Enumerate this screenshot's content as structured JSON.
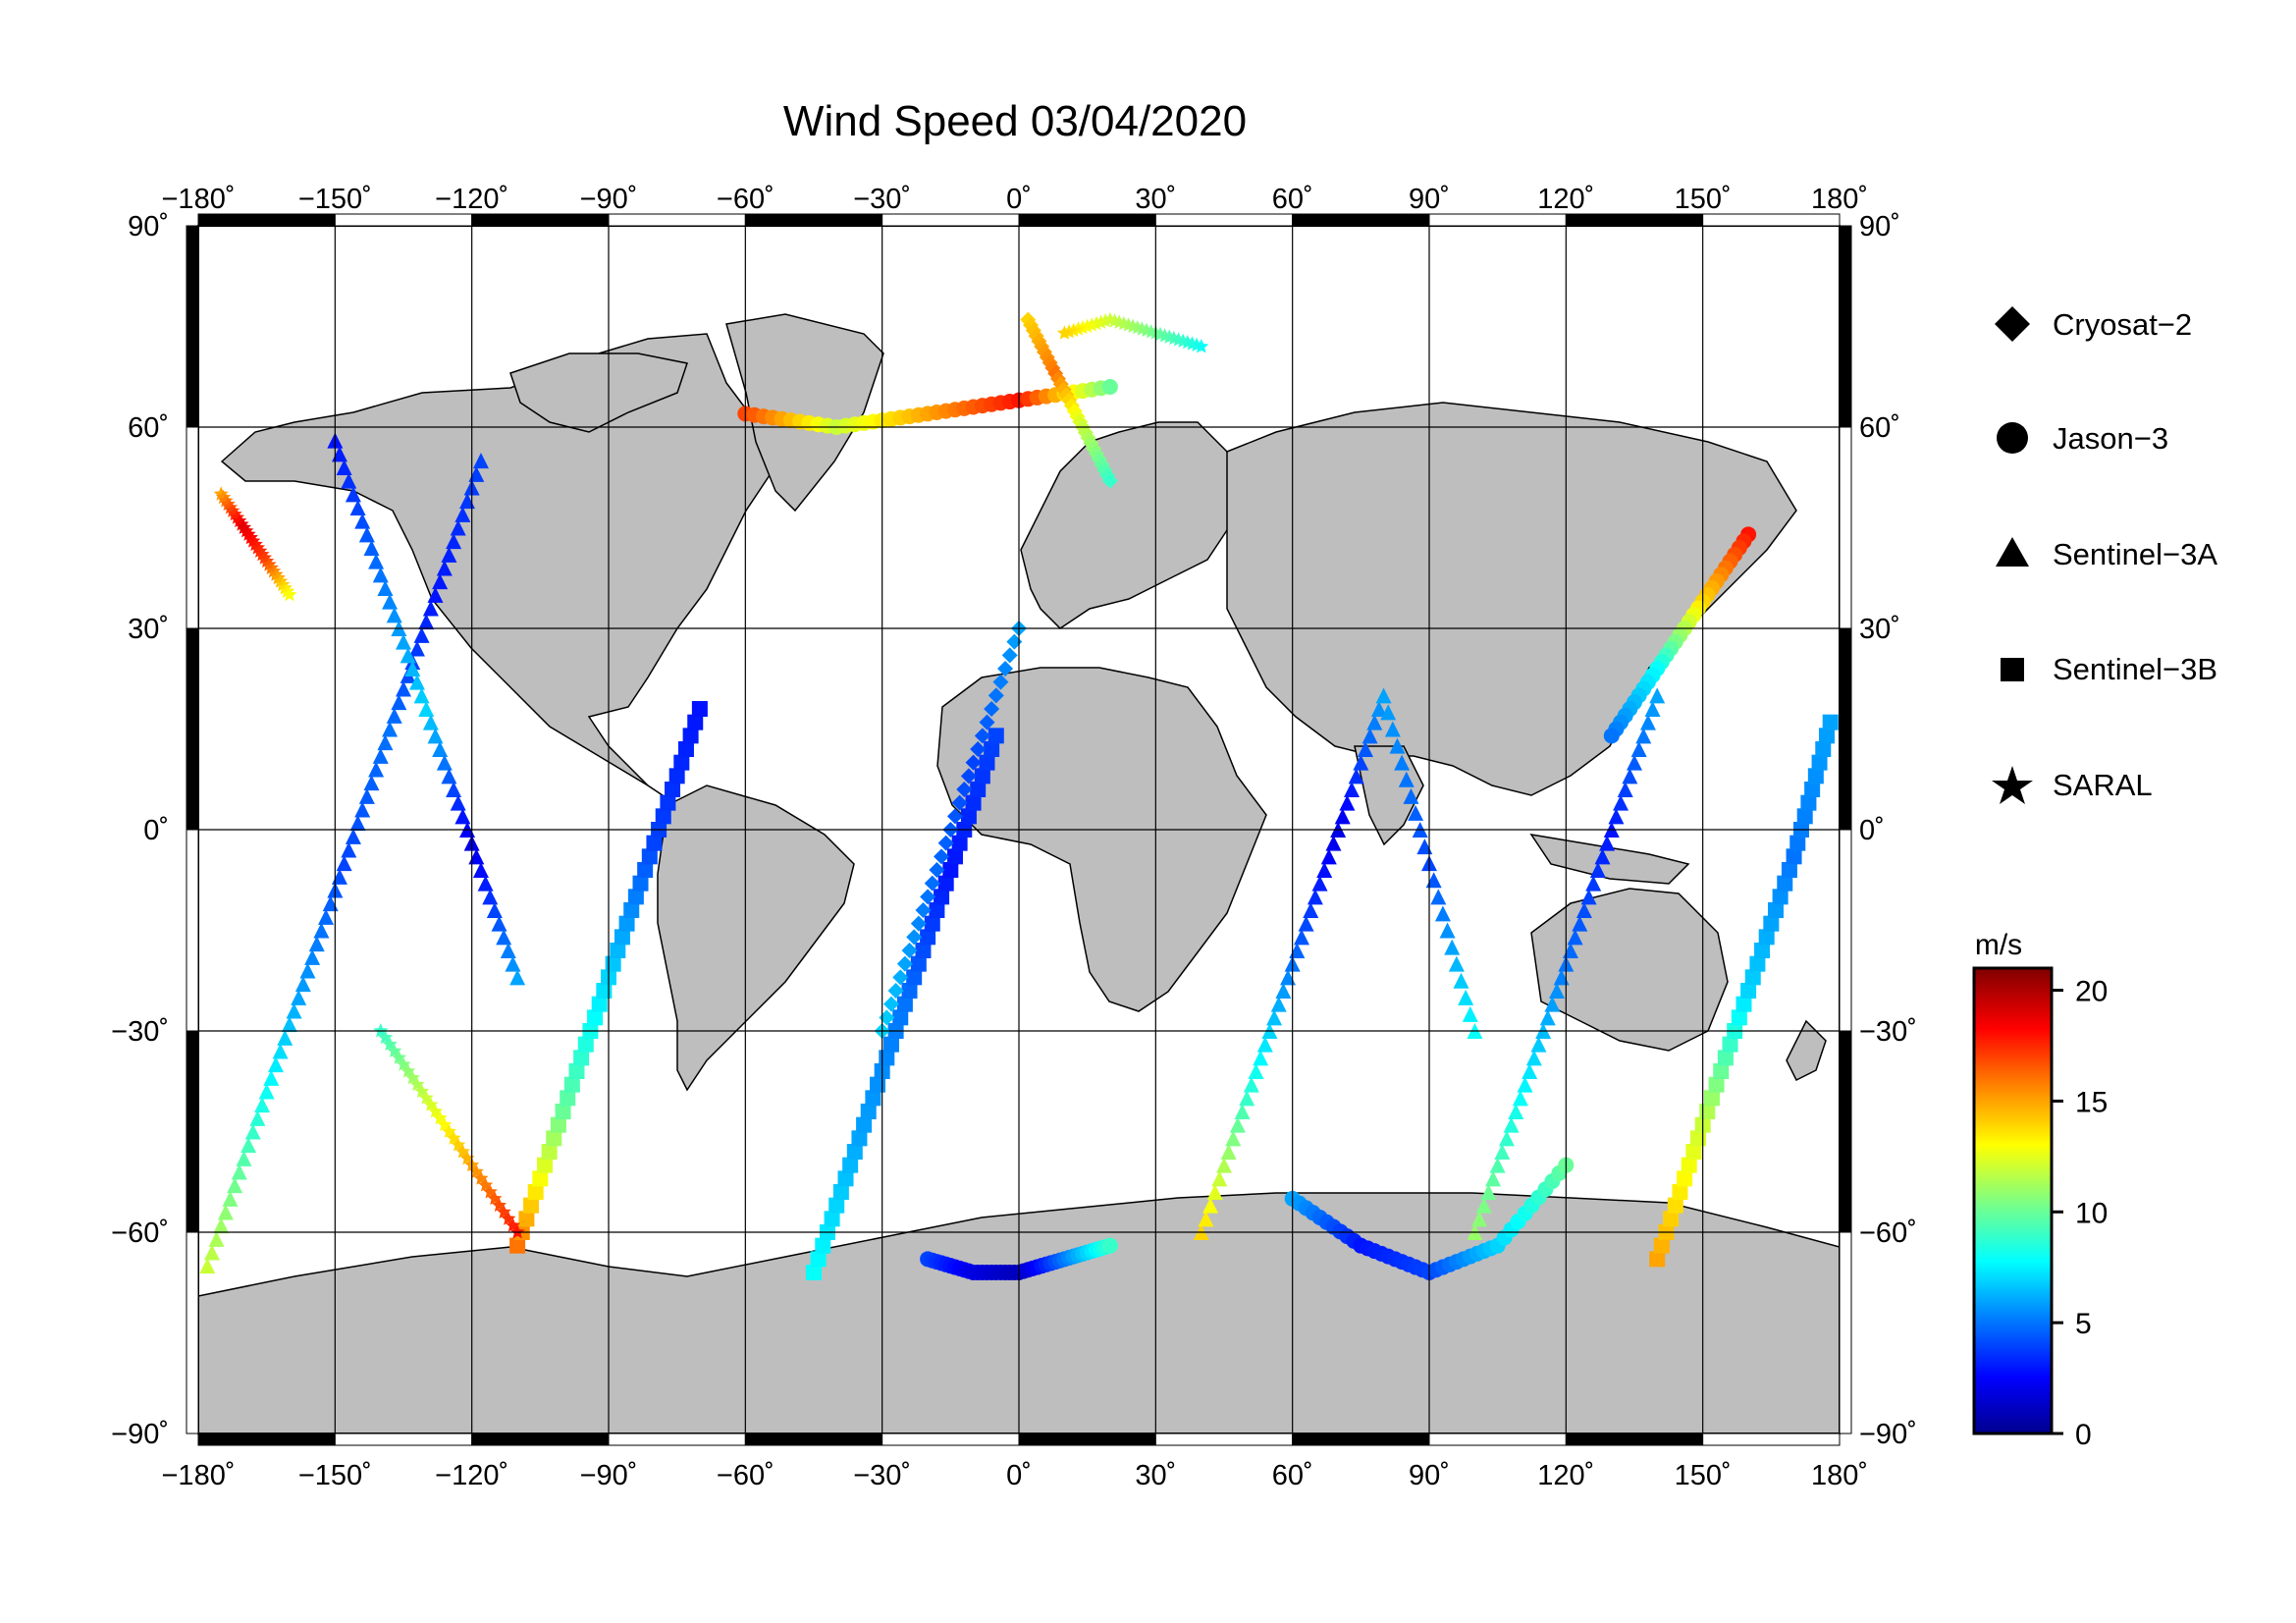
{
  "title": "Wind Speed 03/04/2020",
  "map": {
    "lon_ticks": [
      "−180˚",
      "−150˚",
      "−120˚",
      "−90˚",
      "−60˚",
      "−30˚",
      "0˚",
      "30˚",
      "60˚",
      "90˚",
      "120˚",
      "150˚",
      "180˚"
    ],
    "lon_values": [
      -180,
      -150,
      -120,
      -90,
      -60,
      -30,
      0,
      30,
      60,
      90,
      120,
      150,
      180
    ],
    "lat_ticks": [
      "90˚",
      "60˚",
      "30˚",
      "0˚",
      "−30˚",
      "−60˚",
      "−90˚"
    ],
    "lat_values": [
      90,
      60,
      30,
      0,
      -30,
      -60,
      -90
    ],
    "land_color": "#bebebe",
    "ocean_color": "#ffffff",
    "grid": true
  },
  "legend": {
    "items": [
      {
        "label": "Cryosat−2",
        "marker": "diamond"
      },
      {
        "label": "Jason−3",
        "marker": "circle"
      },
      {
        "label": "Sentinel−3A",
        "marker": "triangle"
      },
      {
        "label": "Sentinel−3B",
        "marker": "square"
      },
      {
        "label": "SARAL",
        "marker": "star"
      }
    ]
  },
  "colorbar": {
    "unit": "m/s",
    "min": 0,
    "max": 21,
    "tick_labels": [
      "20",
      "15",
      "10",
      "5",
      "0"
    ],
    "tick_values": [
      20,
      15,
      10,
      5,
      0
    ],
    "colors": [
      "#00008f",
      "#0000ff",
      "#0080ff",
      "#00ffff",
      "#80ff80",
      "#ffff00",
      "#ff8000",
      "#ff0000",
      "#800000"
    ]
  },
  "chart_data": {
    "type": "scatter",
    "title": "Wind Speed 03/04/2020",
    "xlim": [
      -180,
      180
    ],
    "ylim": [
      -90,
      90
    ],
    "value_unit": "m/s",
    "value_range": [
      0,
      21
    ],
    "series": [
      {
        "name": "Sentinel−3A",
        "marker": "triangle",
        "tracks": [
          {
            "lon": [
              -178,
              -168,
              -158,
              -148,
              -138,
              -128,
              -118
            ],
            "lat": [
              -65,
              -45,
              -25,
              -5,
              15,
              35,
              55
            ],
            "ws": [
              12,
              9,
              6,
              4,
              5,
              3,
              4
            ]
          },
          {
            "lon": [
              -150,
              -140,
              -130,
              -120,
              -110
            ],
            "lat": [
              58,
              38,
              18,
              -2,
              -22
            ],
            "ws": [
              3,
              5,
              7,
              2,
              6
            ]
          },
          {
            "lon": [
              40,
              50,
              60,
              70,
              80,
              90,
              100
            ],
            "lat": [
              -60,
              -40,
              -20,
              0,
              20,
              -5,
              -30
            ],
            "ws": [
              14,
              9,
              5,
              2,
              6,
              4,
              8
            ]
          },
          {
            "lon": [
              100,
              110,
              120,
              130,
              140
            ],
            "lat": [
              -60,
              -40,
              -20,
              0,
              20
            ],
            "ws": [
              11,
              8,
              5,
              3,
              6
            ]
          }
        ]
      },
      {
        "name": "Sentinel−3B",
        "marker": "square",
        "tracks": [
          {
            "lon": [
              -110,
              -100,
              -90,
              -80,
              -70
            ],
            "lat": [
              -62,
              -42,
              -22,
              -2,
              18
            ],
            "ws": [
              16,
              10,
              7,
              4,
              3
            ]
          },
          {
            "lon": [
              -45,
              -35,
              -25,
              -15,
              -5
            ],
            "lat": [
              -66,
              -46,
              -26,
              -6,
              14
            ],
            "ws": [
              8,
              6,
              5,
              3,
              4
            ]
          },
          {
            "lon": [
              140,
              150,
              160,
              170,
              178
            ],
            "lat": [
              -64,
              -44,
              -24,
              -4,
              16
            ],
            "ws": [
              15,
              12,
              7,
              5,
              6
            ]
          }
        ]
      },
      {
        "name": "Jason−3",
        "marker": "circle",
        "tracks": [
          {
            "lon": [
              -60,
              -40,
              -20,
              0,
              20
            ],
            "lat": [
              62,
              60,
              62,
              64,
              66
            ],
            "ws": [
              17,
              12,
              15,
              18,
              10
            ]
          },
          {
            "lon": [
              -20,
              -10,
              0,
              10,
              20
            ],
            "lat": [
              -64,
              -66,
              -66,
              -64,
              -62
            ],
            "ws": [
              4,
              2,
              1,
              5,
              9
            ]
          },
          {
            "lon": [
              160,
              150,
              140,
              130
            ],
            "lat": [
              44,
              34,
              24,
              14
            ],
            "ws": [
              18,
              14,
              8,
              5
            ]
          },
          {
            "lon": [
              60,
              75,
              90,
              105,
              120
            ],
            "lat": [
              -55,
              -62,
              -66,
              -62,
              -50
            ],
            "ws": [
              6,
              3,
              4,
              7,
              10
            ]
          }
        ]
      },
      {
        "name": "Cryosat−2",
        "marker": "diamond",
        "tracks": [
          {
            "lon": [
              2,
              8,
              14,
              20
            ],
            "lat": [
              76,
              68,
              60,
              52
            ],
            "ws": [
              14,
              16,
              12,
              9
            ]
          },
          {
            "lon": [
              -30,
              -20,
              -10,
              0
            ],
            "lat": [
              -30,
              -10,
              10,
              30
            ],
            "ws": [
              7,
              5,
              4,
              6
            ]
          }
        ]
      },
      {
        "name": "SARAL",
        "marker": "star",
        "tracks": [
          {
            "lon": [
              -175,
              -170,
              -165,
              -160
            ],
            "lat": [
              50,
              45,
              40,
              35
            ],
            "ws": [
              15,
              19,
              17,
              13
            ]
          },
          {
            "lon": [
              -140,
              -130,
              -120,
              -110
            ],
            "lat": [
              -30,
              -40,
              -50,
              -60
            ],
            "ws": [
              9,
              12,
              15,
              18
            ]
          },
          {
            "lon": [
              40,
              30,
              20,
              10
            ],
            "lat": [
              72,
              74,
              76,
              74
            ],
            "ws": [
              8,
              10,
              12,
              14
            ]
          }
        ]
      }
    ]
  }
}
